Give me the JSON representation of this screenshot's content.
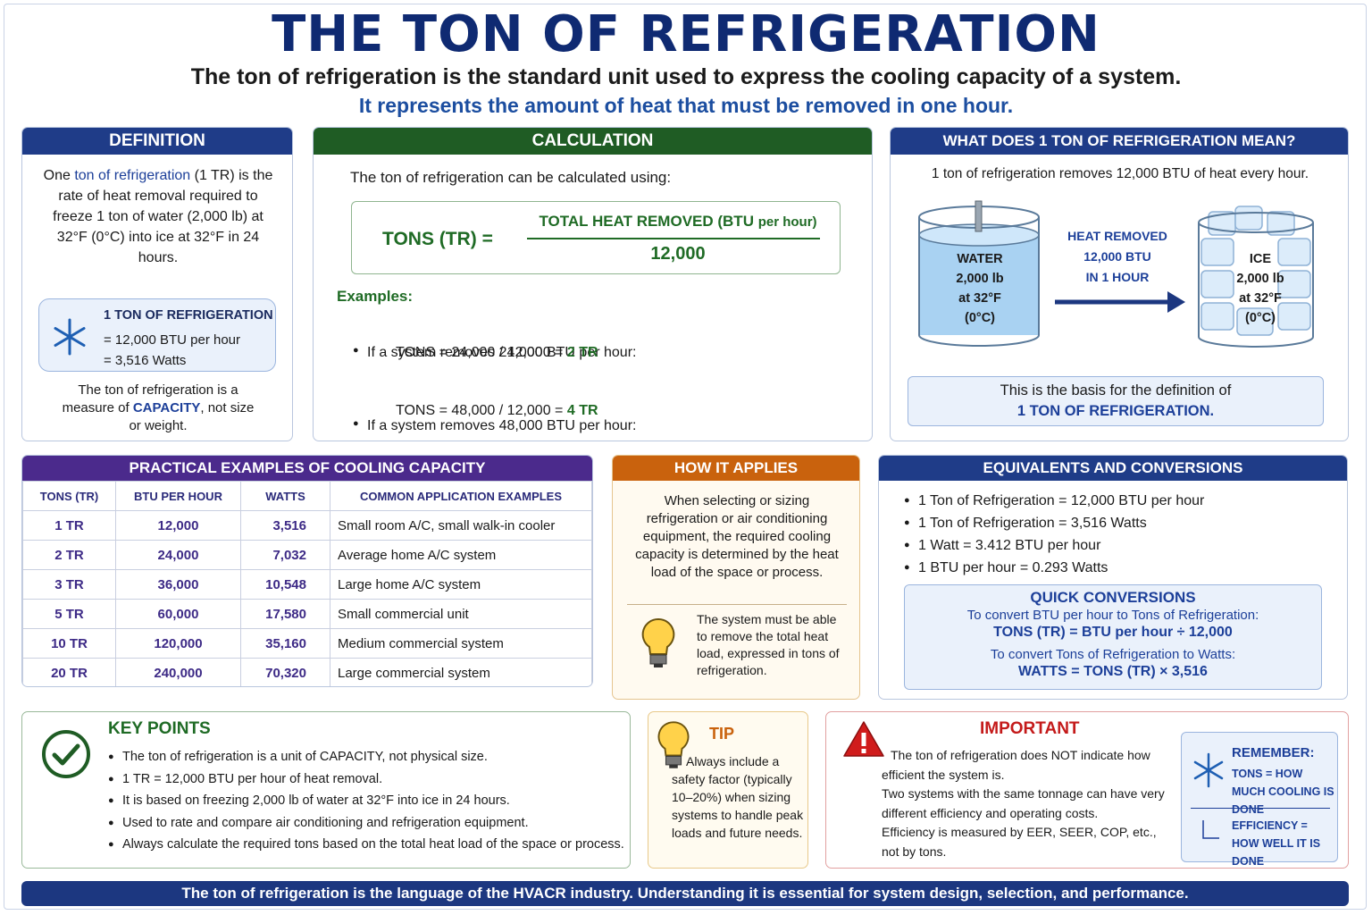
{
  "header": {
    "title": "THE TON OF REFRIGERATION",
    "subtitle": "The ton of refrigeration is the standard unit used to express the cooling capacity of a system.",
    "tagline": "It represents the amount of heat that must be removed in one hour."
  },
  "definition": {
    "heading": "DEFINITION",
    "text": [
      "One ",
      "ton of refrigeration",
      " (1 TR) is the rate of heat removal required to freeze 1 ton of water (2,000 lb) at 32°F (0°C) into ice at 32°F in 24 hours."
    ],
    "box": {
      "title": "1 TON OF REFRIGERATION",
      "lines": [
        "= 12,000 BTU per hour",
        "= 3,516 Watts"
      ]
    },
    "note": [
      "The ton of refrigeration is a measure of ",
      "CAPACITY",
      ", not size or weight."
    ]
  },
  "calculation": {
    "heading": "CALCULATION",
    "intro": "The ton of refrigeration can be calculated using:",
    "formula": {
      "lhs": "TONS (TR) =",
      "numerator": "TOTAL HEAT REMOVED (BTU",
      "numerator_unit": "per hour)",
      "denominator": "12,000"
    },
    "examples_label": "Examples:",
    "examples": [
      {
        "condition": "If a system removes 24,000 BTU per hour:",
        "equation": "TONS = 24,000 / 12,000 =",
        "result": "2 TR"
      },
      {
        "condition": "If a system removes 48,000 BTU per hour:",
        "equation": "TONS = 48,000 / 12,000 =",
        "result": "4 TR"
      }
    ]
  },
  "meaning": {
    "heading": "WHAT DOES 1 TON OF REFRIGERATION MEAN?",
    "intro": "1 ton of refrigeration removes 12,000 BTU of heat every hour.",
    "water": {
      "label": "WATER",
      "lines": [
        "2,000 lb",
        "at 32°F",
        "(0°C)"
      ]
    },
    "arrow_label": [
      "HEAT REMOVED",
      "12,000 BTU",
      "IN 1 HOUR"
    ],
    "ice": {
      "label": "ICE",
      "lines": [
        "2,000 lb",
        "at 32°F",
        "(0°C)"
      ]
    },
    "basis": [
      "This is the basis for the definition of",
      "1 TON OF REFRIGERATION."
    ]
  },
  "practical": {
    "heading": "PRACTICAL EXAMPLES OF COOLING CAPACITY",
    "columns": [
      "TONS (TR)",
      "BTU PER HOUR",
      "WATTS",
      "COMMON APPLICATION EXAMPLES"
    ],
    "rows": [
      [
        "1 TR",
        "12,000",
        "3,516",
        "Small room A/C, small walk-in cooler"
      ],
      [
        "2 TR",
        "24,000",
        "7,032",
        "Average home A/C system"
      ],
      [
        "3 TR",
        "36,000",
        "10,548",
        "Large home A/C system"
      ],
      [
        "5 TR",
        "60,000",
        "17,580",
        "Small commercial unit"
      ],
      [
        "10 TR",
        "120,000",
        "35,160",
        "Medium commercial system"
      ],
      [
        "20 TR",
        "240,000",
        "70,320",
        "Large commercial system"
      ]
    ]
  },
  "applies": {
    "heading": "HOW IT APPLIES",
    "text": "When selecting or sizing refrigeration or air conditioning equipment, the required cooling capacity is determined by the heat load of the space or process.",
    "tip": "The system must be able to remove the total heat load, expressed in tons of refrigeration."
  },
  "equivalents": {
    "heading": "EQUIVALENTS AND CONVERSIONS",
    "items": [
      "1 Ton of Refrigeration = 12,000 BTU per hour",
      "1 Ton of Refrigeration = 3,516 Watts",
      "1 Watt = 3.412 BTU per hour",
      "1 BTU per hour = 0.293 Watts"
    ],
    "quick": {
      "title": "QUICK CONVERSIONS",
      "rules": [
        {
          "label": "To convert BTU per hour to Tons of Refrigeration:",
          "formula": "TONS (TR) = BTU per hour ÷ 12,000"
        },
        {
          "label": "To convert Tons of Refrigeration to Watts:",
          "formula": "WATTS = TONS (TR) × 3,516"
        }
      ]
    }
  },
  "key_points": {
    "heading": "KEY POINTS",
    "items": [
      "The ton of refrigeration is a unit of CAPACITY, not physical size.",
      "1 TR = 12,000 BTU per hour of heat removal.",
      "It is based on freezing 2,000 lb of water at 32°F into ice in 24 hours.",
      "Used to rate and compare air conditioning and refrigeration equipment.",
      "Always calculate the required tons based on the total heat load of the space or process."
    ]
  },
  "tip": {
    "heading": "TIP",
    "text": "Always include a safety factor (typically 10–20%) when sizing systems to handle peak loads and future needs."
  },
  "important": {
    "heading": "IMPORTANT",
    "lines": [
      "The ton of refrigeration does NOT indicate how efficient the system is.",
      "Two systems with the same tonnage can have very different efficiency and operating costs.",
      "Efficiency is measured by EER, SEER, COP, etc., not by tons."
    ],
    "remember": {
      "title": "REMEMBER:",
      "items": [
        "TONS = HOW MUCH COOLING IS DONE",
        "EFFICIENCY = HOW WELL IT IS DONE"
      ]
    }
  },
  "footer": "The ton of refrigeration is the language of the HVACR industry.  Understanding it is essential for system design, selection, and performance."
}
